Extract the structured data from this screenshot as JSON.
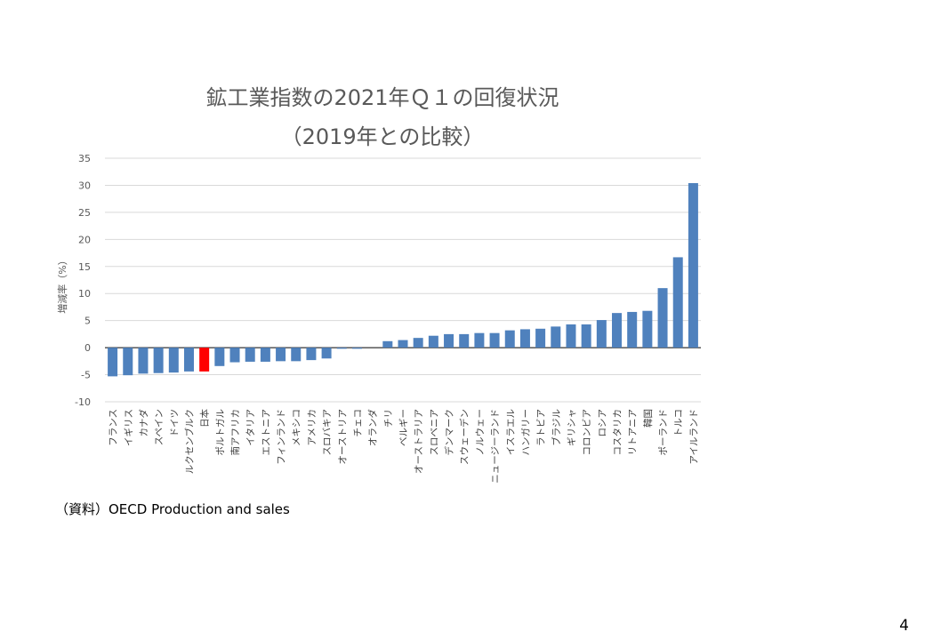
{
  "page": {
    "number": "4"
  },
  "source_note": "（資料）OECD Production and sales",
  "chart_data": {
    "type": "bar",
    "title": "鉱工業指数の2021年Ｑ１の回復状況",
    "subtitle": "（2019年との比較）",
    "xlabel": "",
    "ylabel": "増減率（%）",
    "ylim": [
      -10,
      35
    ],
    "yticks": [
      35,
      30,
      25,
      20,
      15,
      10,
      5,
      0,
      -5,
      -10
    ],
    "grid": true,
    "colors": {
      "default": "#4f81bd",
      "highlight": "#ff0000"
    },
    "highlight_category": "日本",
    "categories": [
      "フランス",
      "イギリス",
      "カナダ",
      "スペイン",
      "ドイツ",
      "ルクセンブルク",
      "日本",
      "ポルトガル",
      "南アフリカ",
      "イタリア",
      "エストニア",
      "フィンランド",
      "メキシコ",
      "アメリカ",
      "スロバキア",
      "オーストリア",
      "チェコ",
      "オランダ",
      "チリ",
      "ベルギー",
      "オーストラリア",
      "スロベニア",
      "デンマーク",
      "スウェーデン",
      "ノルウェー",
      "ニュージーランド",
      "イスラエル",
      "ハンガリー",
      "ラトビア",
      "ブラジル",
      "ギリシャ",
      "コロンビア",
      "ロシア",
      "コスタリカ",
      "リトアニア",
      "韓国",
      "ポーランド",
      "トルコ",
      "アイルランド"
    ],
    "values": [
      -5.3,
      -5.1,
      -4.8,
      -4.7,
      -4.6,
      -4.4,
      -4.4,
      -3.4,
      -2.7,
      -2.6,
      -2.6,
      -2.5,
      -2.5,
      -2.3,
      -2.0,
      -0.2,
      -0.2,
      0,
      1.2,
      1.4,
      1.8,
      2.2,
      2.5,
      2.5,
      2.7,
      2.7,
      3.2,
      3.4,
      3.5,
      3.9,
      4.3,
      4.3,
      5.1,
      6.4,
      6.6,
      6.8,
      11.0,
      16.7,
      30.4
    ]
  }
}
